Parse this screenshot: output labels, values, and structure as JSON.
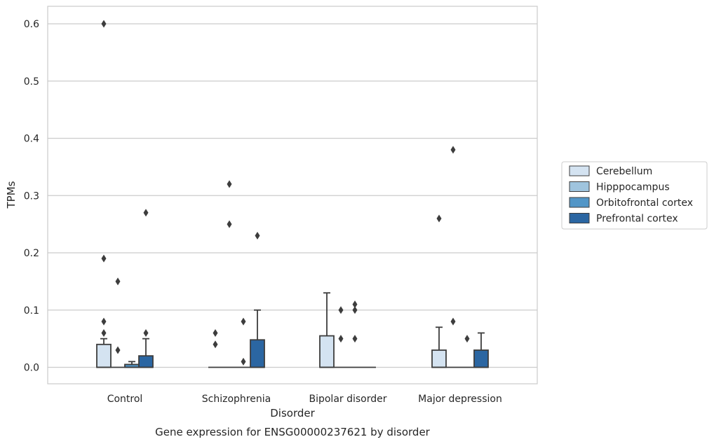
{
  "chart_data": {
    "type": "box",
    "caption": "Gene expression for ENSG00000237621 by disorder",
    "xlabel": "Disorder",
    "ylabel": "TPMs",
    "ylim": [
      -0.03,
      0.63
    ],
    "yticks": [
      0.0,
      0.1,
      0.2,
      0.3,
      0.4,
      0.5,
      0.6
    ],
    "ytick_labels": [
      "0.0",
      "0.1",
      "0.2",
      "0.3",
      "0.4",
      "0.5",
      "0.6"
    ],
    "grid": "horizontal",
    "legend_position": "right",
    "categories": [
      "Control",
      "Schizophrenia",
      "Bipolar disorder",
      "Major depression"
    ],
    "series": [
      {
        "name": "Cerebellum",
        "color": "#d4e3f1",
        "boxes": [
          {
            "q1": 0.0,
            "median": 0.0,
            "q3": 0.04,
            "whisker_low": 0.0,
            "whisker_high": 0.05,
            "outliers": [
              0.6,
              0.19,
              0.08,
              0.06
            ]
          },
          {
            "q1": 0.0,
            "median": 0.0,
            "q3": 0.0,
            "whisker_low": 0.0,
            "whisker_high": 0.0,
            "outliers": [
              0.06,
              0.04
            ]
          },
          {
            "q1": 0.0,
            "median": 0.0,
            "q3": 0.055,
            "whisker_low": 0.0,
            "whisker_high": 0.13,
            "outliers": []
          },
          {
            "q1": 0.0,
            "median": 0.0,
            "q3": 0.03,
            "whisker_low": 0.0,
            "whisker_high": 0.07,
            "outliers": [
              0.26
            ]
          }
        ]
      },
      {
        "name": "Hipppocampus",
        "color": "#9fc4de",
        "boxes": [
          {
            "q1": 0.0,
            "median": 0.0,
            "q3": 0.0,
            "whisker_low": 0.0,
            "whisker_high": 0.0,
            "outliers": [
              0.15,
              0.03
            ]
          },
          {
            "q1": 0.0,
            "median": 0.0,
            "q3": 0.0,
            "whisker_low": 0.0,
            "whisker_high": 0.0,
            "outliers": [
              0.32,
              0.25
            ]
          },
          {
            "q1": 0.0,
            "median": 0.0,
            "q3": 0.0,
            "whisker_low": 0.0,
            "whisker_high": 0.0,
            "outliers": [
              0.1,
              0.05
            ]
          },
          {
            "q1": 0.0,
            "median": 0.0,
            "q3": 0.0,
            "whisker_low": 0.0,
            "whisker_high": 0.0,
            "outliers": [
              0.38,
              0.08
            ]
          }
        ]
      },
      {
        "name": "Orbitofrontal cortex",
        "color": "#5296c7",
        "boxes": [
          {
            "q1": 0.0,
            "median": 0.0,
            "q3": 0.005,
            "whisker_low": 0.0,
            "whisker_high": 0.01,
            "outliers": []
          },
          {
            "q1": 0.0,
            "median": 0.0,
            "q3": 0.0,
            "whisker_low": 0.0,
            "whisker_high": 0.0,
            "outliers": [
              0.08,
              0.01
            ]
          },
          {
            "q1": 0.0,
            "median": 0.0,
            "q3": 0.0,
            "whisker_low": 0.0,
            "whisker_high": 0.0,
            "outliers": [
              0.11,
              0.1,
              0.05
            ]
          },
          {
            "q1": 0.0,
            "median": 0.0,
            "q3": 0.0,
            "whisker_low": 0.0,
            "whisker_high": 0.0,
            "outliers": [
              0.05
            ]
          }
        ]
      },
      {
        "name": "Prefrontal cortex",
        "color": "#2b66a2",
        "boxes": [
          {
            "q1": 0.0,
            "median": 0.0,
            "q3": 0.02,
            "whisker_low": 0.0,
            "whisker_high": 0.05,
            "outliers": [
              0.27,
              0.06
            ]
          },
          {
            "q1": 0.0,
            "median": 0.0,
            "q3": 0.048,
            "whisker_low": 0.0,
            "whisker_high": 0.1,
            "outliers": [
              0.23
            ]
          },
          {
            "q1": 0.0,
            "median": 0.0,
            "q3": 0.0,
            "whisker_low": 0.0,
            "whisker_high": 0.0,
            "outliers": []
          },
          {
            "q1": 0.0,
            "median": 0.0,
            "q3": 0.03,
            "whisker_low": 0.0,
            "whisker_high": 0.06,
            "outliers": []
          }
        ]
      }
    ]
  }
}
